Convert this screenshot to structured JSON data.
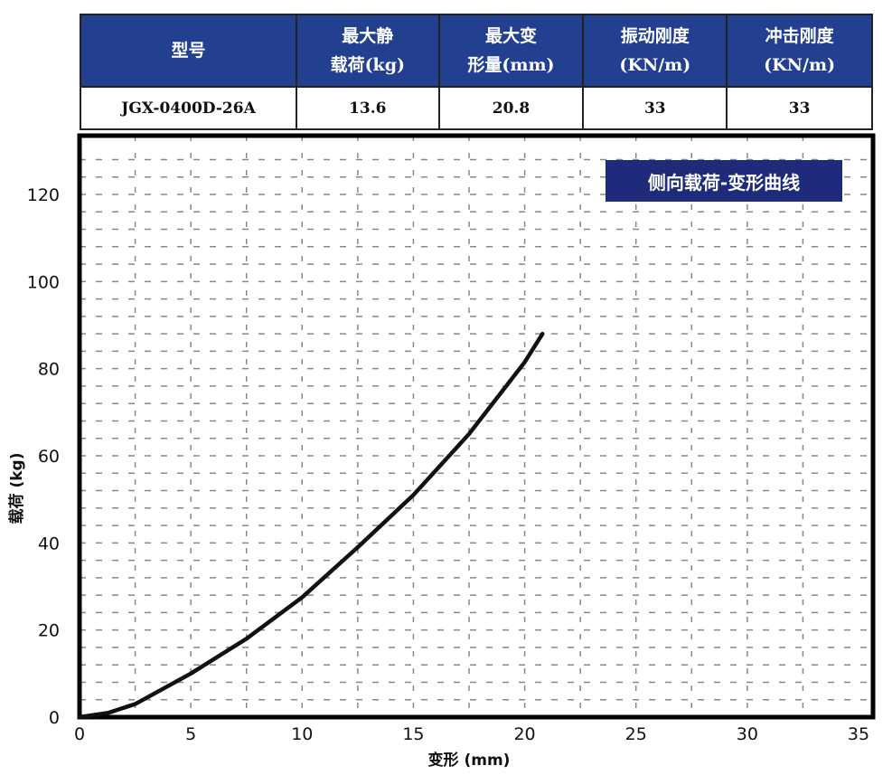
{
  "table": {
    "headers": [
      [
        "型号"
      ],
      [
        "最大静",
        "载荷(kg)"
      ],
      [
        "最大变",
        "形量(mm)"
      ],
      [
        "振动刚度",
        "(KN/m)"
      ],
      [
        "冲击刚度",
        "(KN/m)"
      ]
    ],
    "row": [
      "JGX-0400D-26A",
      "13.6",
      "20.8",
      "33",
      "33"
    ]
  },
  "chart_data": {
    "type": "line",
    "title": "侧向载荷-变形曲线",
    "xlabel": "变形 (mm)",
    "ylabel": "载荷 (kg)",
    "xlim": [
      0,
      35
    ],
    "ylim": [
      0,
      130
    ],
    "xticks": [
      0,
      5,
      10,
      15,
      20,
      25,
      30,
      35
    ],
    "yticks": [
      0,
      20,
      40,
      60,
      80,
      100,
      120
    ],
    "grid": true,
    "series": [
      {
        "x": [
          0,
          1.3,
          2.5,
          5,
          7.5,
          10,
          12.5,
          15,
          17.5,
          20,
          20.8
        ],
        "y": [
          0,
          1,
          3,
          10,
          18,
          27.5,
          39,
          51,
          65,
          81.5,
          88
        ]
      }
    ],
    "colors": {
      "line": "#111111",
      "badge": "#1e2a7a",
      "header": "#233f8f"
    }
  }
}
